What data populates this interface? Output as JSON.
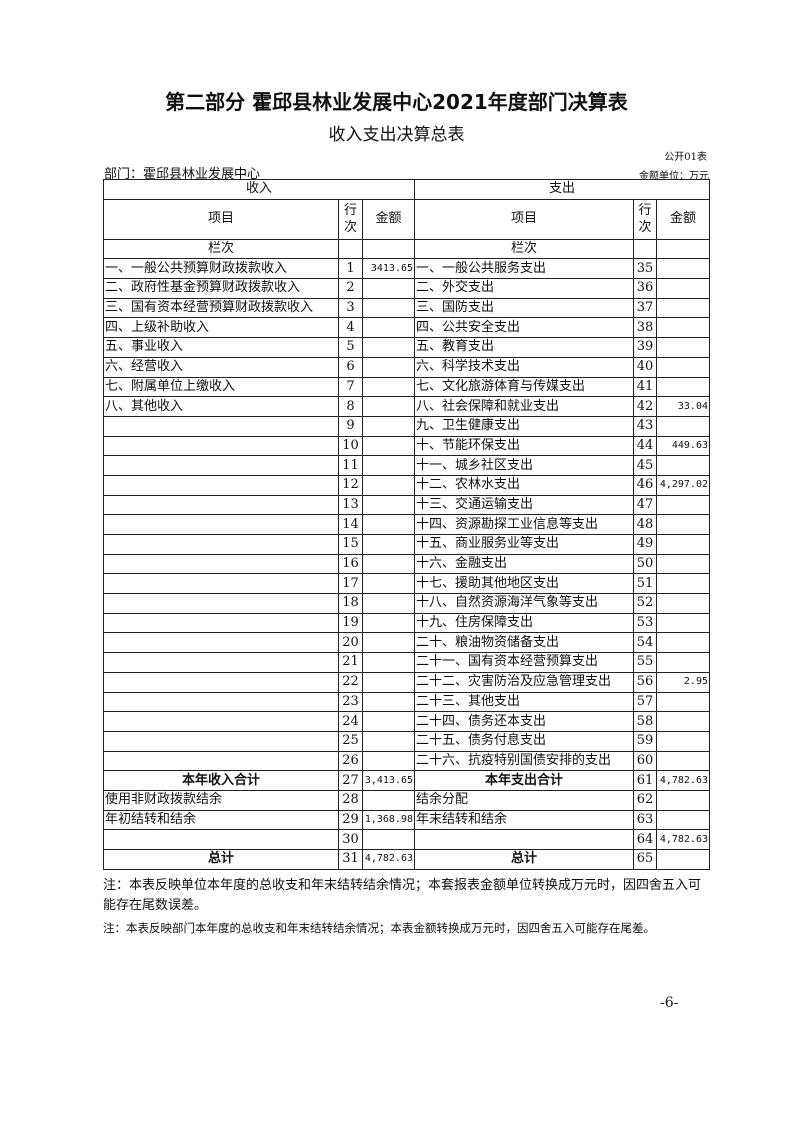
{
  "title": "第二部分 霍邱县林业发展中心2021年度部门决算表",
  "subtitle": "收入支出决算总表",
  "form_no": "公开01表",
  "department": "部门：霍邱县林业发展中心",
  "unit": "金额单位：万元",
  "headers": {
    "income": "收入",
    "expense": "支出",
    "item": "项目",
    "line_no": "行次",
    "amount": "金额",
    "column_order": "栏次"
  },
  "rows": [
    [
      "一、一般公共预算财政拨款收入",
      "1",
      "3413.65",
      "一、一般公共服务支出",
      "35",
      ""
    ],
    [
      "二、政府性基金预算财政拨款收入",
      "2",
      "",
      "二、外交支出",
      "36",
      ""
    ],
    [
      "三、国有资本经营预算财政拨款收入",
      "3",
      "",
      "三、国防支出",
      "37",
      ""
    ],
    [
      "四、上级补助收入",
      "4",
      "",
      "四、公共安全支出",
      "38",
      ""
    ],
    [
      "五、事业收入",
      "5",
      "",
      "五、教育支出",
      "39",
      ""
    ],
    [
      "六、经营收入",
      "6",
      "",
      "六、科学技术支出",
      "40",
      ""
    ],
    [
      "七、附属单位上缴收入",
      "7",
      "",
      "七、文化旅游体育与传媒支出",
      "41",
      ""
    ],
    [
      "八、其他收入",
      "8",
      "",
      "八、社会保障和就业支出",
      "42",
      "33.04"
    ],
    [
      "",
      "9",
      "",
      "九、卫生健康支出",
      "43",
      ""
    ],
    [
      "",
      "10",
      "",
      "十、节能环保支出",
      "44",
      "449.63"
    ],
    [
      "",
      "11",
      "",
      "十一、城乡社区支出",
      "45",
      ""
    ],
    [
      "",
      "12",
      "",
      "十二、农林水支出",
      "46",
      "4,297.02"
    ],
    [
      "",
      "13",
      "",
      "十三、交通运输支出",
      "47",
      ""
    ],
    [
      "",
      "14",
      "",
      "十四、资源勘探工业信息等支出",
      "48",
      ""
    ],
    [
      "",
      "15",
      "",
      "十五、商业服务业等支出",
      "49",
      ""
    ],
    [
      "",
      "16",
      "",
      "十六、金融支出",
      "50",
      ""
    ],
    [
      "",
      "17",
      "",
      "十七、援助其他地区支出",
      "51",
      ""
    ],
    [
      "",
      "18",
      "",
      "十八、自然资源海洋气象等支出",
      "52",
      ""
    ],
    [
      "",
      "19",
      "",
      "十九、住房保障支出",
      "53",
      ""
    ],
    [
      "",
      "20",
      "",
      "二十、粮油物资储备支出",
      "54",
      ""
    ],
    [
      "",
      "21",
      "",
      "二十一、国有资本经营预算支出",
      "55",
      ""
    ],
    [
      "",
      "22",
      "",
      "二十二、灾害防治及应急管理支出",
      "56",
      "2.95"
    ],
    [
      "",
      "23",
      "",
      "二十三、其他支出",
      "57",
      ""
    ],
    [
      "",
      "24",
      "",
      "二十四、债务还本支出",
      "58",
      ""
    ],
    [
      "",
      "25",
      "",
      "二十五、债务付息支出",
      "59",
      ""
    ],
    [
      "",
      "26",
      "",
      "二十六、抗疫特别国债安排的支出",
      "60",
      ""
    ],
    [
      "本年收入合计",
      "27",
      "3,413.65",
      "本年支出合计",
      "61",
      "4,782.63"
    ],
    [
      "使用非财政拨款结余",
      "28",
      "",
      "结余分配",
      "62",
      ""
    ],
    [
      "年初结转和结余",
      "29",
      "1,368.98",
      "年末结转和结余",
      "63",
      ""
    ],
    [
      "",
      "30",
      "",
      "",
      "64",
      "4,782.63"
    ],
    [
      "总计",
      "31",
      "4,782.63",
      "总计",
      "65",
      ""
    ]
  ],
  "bold_rows": [
    26,
    30
  ],
  "notes": [
    "注：本表反映单位本年度的总收支和年末结转结余情况；本套报表金额单位转换成万元时，因四舍五入可能存在尾数误差。",
    "注：本表反映部门本年度的总收支和年末结转结余情况；本表金额转换成万元时，因四舍五入可能存在尾差。"
  ],
  "page_number": "-6-"
}
